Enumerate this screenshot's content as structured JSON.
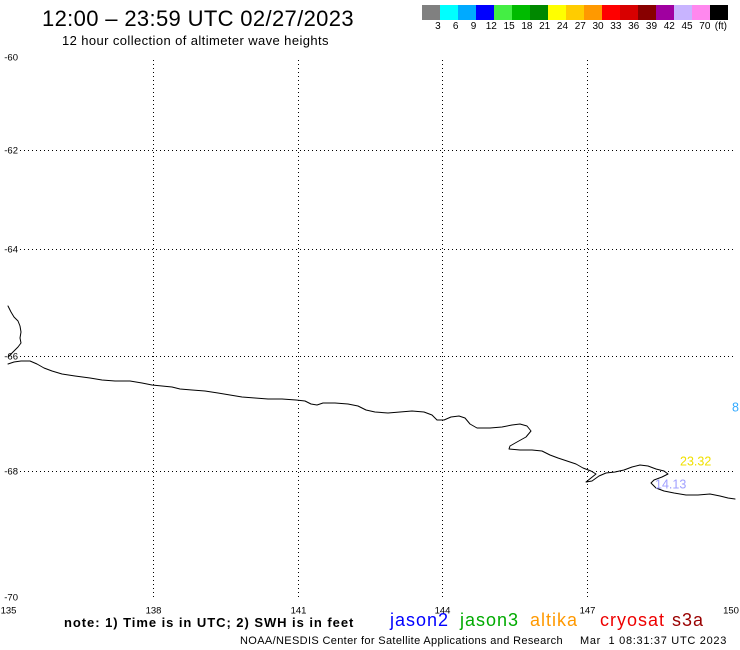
{
  "header": {
    "title": "12:00 – 23:59 UTC 02/27/2023",
    "subtitle": "12 hour collection of altimeter wave heights"
  },
  "legend": {
    "swatches": [
      "#808080",
      "#00ffff",
      "#00aaff",
      "#0000ff",
      "#44ee44",
      "#00bb00",
      "#008800",
      "#ffff00",
      "#ffcc00",
      "#ff9900",
      "#ff0000",
      "#d80000",
      "#880000",
      "#a000a0",
      "#c8b4ff",
      "#ff88ee",
      "#000000"
    ],
    "labels": [
      "3",
      "6",
      "9",
      "12",
      "15",
      "18",
      "21",
      "24",
      "27",
      "30",
      "33",
      "36",
      "39",
      "42",
      "45",
      "70"
    ],
    "unit": "(ft)"
  },
  "map": {
    "lon_range": [
      135,
      150
    ],
    "lat_range": [
      -60,
      -70
    ],
    "lon_ticks": [
      135,
      138,
      141,
      144,
      147,
      150
    ],
    "lat_ticks": [
      -60,
      -62,
      -64,
      -66,
      -68,
      -70
    ],
    "grid": true,
    "coastline_color": "#000000",
    "wave_height_labels": [
      {
        "text": "23.32",
        "color": "#f0e000"
      },
      {
        "text": "14.13",
        "color": "#a0a0ff"
      },
      {
        "text": "8",
        "color": "#33aaff"
      }
    ]
  },
  "note": "note: 1) Time is in UTC; 2) SWH is in feet",
  "satellites": [
    {
      "name": "jason2",
      "color": "#0000ff"
    },
    {
      "name": "jason3",
      "color": "#00aa00"
    },
    {
      "name": "altika",
      "color": "#ff9900"
    },
    {
      "name": "cryosat",
      "color": "#ee0000"
    },
    {
      "name": "s3a",
      "color": "#990000"
    }
  ],
  "footer": {
    "credit": "NOAA/NESDIS Center for Satellite Applications and Research",
    "timestamp": "Mar  1 08:31:37 UTC 2023"
  }
}
